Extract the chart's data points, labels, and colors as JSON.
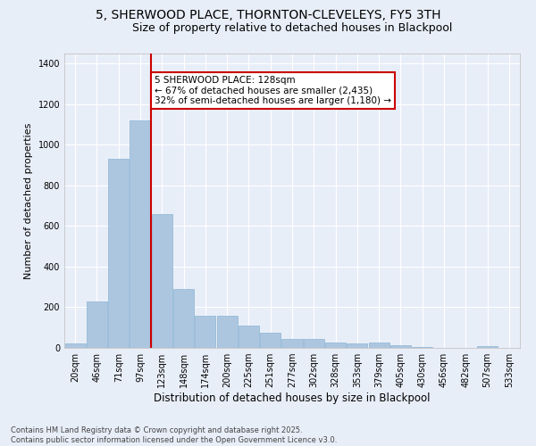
{
  "title": "5, SHERWOOD PLACE, THORNTON-CLEVELEYS, FY5 3TH",
  "subtitle": "Size of property relative to detached houses in Blackpool",
  "xlabel": "Distribution of detached houses by size in Blackpool",
  "ylabel": "Number of detached properties",
  "categories": [
    "20sqm",
    "46sqm",
    "71sqm",
    "97sqm",
    "123sqm",
    "148sqm",
    "174sqm",
    "200sqm",
    "225sqm",
    "251sqm",
    "277sqm",
    "302sqm",
    "328sqm",
    "353sqm",
    "379sqm",
    "405sqm",
    "430sqm",
    "456sqm",
    "482sqm",
    "507sqm",
    "533sqm"
  ],
  "values": [
    20,
    230,
    930,
    1120,
    660,
    290,
    160,
    160,
    110,
    75,
    45,
    45,
    25,
    20,
    25,
    15,
    5,
    0,
    0,
    8,
    0
  ],
  "bar_color": "#adc6e0",
  "bar_edge_color": "#8ab4d4",
  "background_color": "#e8eef8",
  "grid_color": "#ffffff",
  "vline_x_index": 4,
  "annotation_text": "5 SHERWOOD PLACE: 128sqm\n← 67% of detached houses are smaller (2,435)\n32% of semi-detached houses are larger (1,180) →",
  "annotation_box_color": "#ffffff",
  "annotation_box_edge_color": "#cc0000",
  "vline_color": "#cc0000",
  "footer_text": "Contains HM Land Registry data © Crown copyright and database right 2025.\nContains public sector information licensed under the Open Government Licence v3.0.",
  "ylim": [
    0,
    1450
  ],
  "title_fontsize": 10,
  "subtitle_fontsize": 9,
  "xlabel_fontsize": 8.5,
  "ylabel_fontsize": 8,
  "tick_fontsize": 7,
  "footer_fontsize": 6,
  "annot_fontsize": 7.5
}
